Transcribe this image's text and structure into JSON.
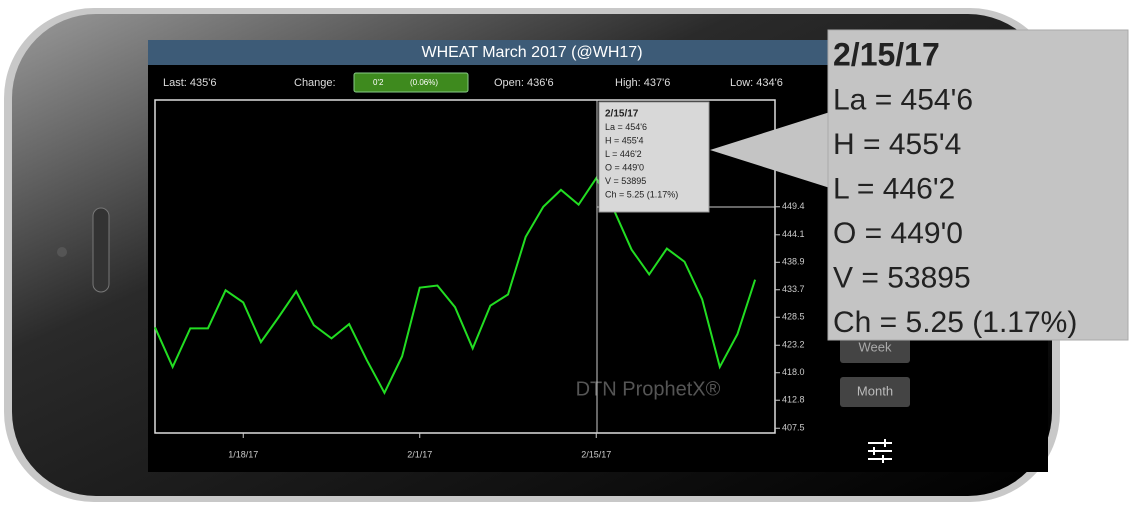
{
  "header": {
    "title": "WHEAT March 2017 (@WH17)"
  },
  "stats": {
    "last": "Last: 435'6",
    "change_label": "Change:",
    "change_value": "0'2",
    "change_pct": "(0.06%)",
    "open": "Open: 436'6",
    "high": "High: 437'6",
    "low": "Low: 434'6"
  },
  "tooltip": {
    "lines": [
      "2/15/17",
      "La = 454'6",
      "H = 455'4",
      "L = 446'2",
      "O = 449'0",
      "V = 53895",
      "Ch = 5.25 (1.17%)"
    ]
  },
  "callout": {
    "lines": [
      "2/15/17",
      "La = 454'6",
      "H = 455'4",
      "L = 446'2",
      "O = 449'0",
      "V = 53895",
      "Ch = 5.25 (1.17%)"
    ]
  },
  "buttons": [
    "Week",
    "Month"
  ],
  "watermark": "DTN ProphetX®",
  "chart_data": {
    "type": "line",
    "categories": [
      null,
      null,
      null,
      null,
      null,
      "1/18/17",
      null,
      null,
      null,
      null,
      null,
      null,
      null,
      null,
      null,
      "2/1/17",
      null,
      null,
      null,
      null,
      null,
      null,
      null,
      null,
      null,
      "2/15/17",
      null,
      null,
      null,
      null,
      null,
      null,
      null,
      null,
      null
    ],
    "series": [
      {
        "color": "#22dd22",
        "values": [
          426.6,
          419.1,
          426.4,
          426.4,
          433.6,
          431.3,
          423.8,
          428.5,
          433.4,
          427.0,
          424.5,
          427.2,
          420.4,
          414.2,
          421.1,
          434.1,
          434.5,
          430.4,
          422.6,
          430.7,
          432.8,
          443.7,
          449.4,
          452.6,
          449.8,
          454.8,
          448.8,
          441.3,
          436.6,
          441.5,
          439.0,
          431.9,
          419.1,
          425.3,
          435.6
        ]
      }
    ],
    "ylim": [
      406.6,
      469.6
    ],
    "yticks": [
      407.5,
      412.8,
      {
        "value": 418,
        "label": "418.0"
      },
      423.2,
      428.5,
      433.7,
      438.9,
      444.1,
      449.4
    ]
  }
}
